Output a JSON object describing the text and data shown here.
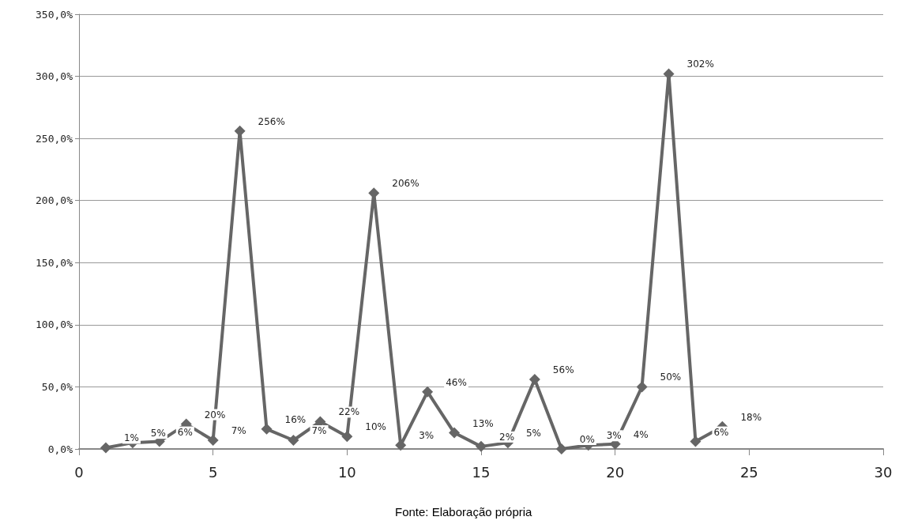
{
  "chart_data": {
    "type": "line",
    "x": [
      1,
      2,
      3,
      4,
      5,
      6,
      7,
      8,
      9,
      10,
      11,
      12,
      13,
      14,
      15,
      16,
      17,
      18,
      19,
      20,
      21,
      22,
      23,
      24
    ],
    "series": [
      {
        "color": "#666666",
        "values": [
          1,
          5,
          6,
          20,
          7,
          256,
          16,
          7,
          22,
          10,
          206,
          3,
          46,
          13,
          2,
          5,
          56,
          0,
          3,
          4,
          50,
          302,
          6,
          18
        ],
        "value_labels": [
          "1%",
          "5%",
          "6%",
          "20%",
          "7%",
          "256%",
          "16%",
          "7%",
          "22%",
          "10%",
          "206%",
          "3%",
          "46%",
          "13%",
          "2%",
          "5%",
          "56%",
          "0%",
          "3%",
          "4%",
          "50%",
          "302%",
          "6%",
          "18%"
        ]
      }
    ],
    "xlim": [
      0,
      30
    ],
    "xticks": [
      0,
      5,
      10,
      15,
      20,
      25,
      30
    ],
    "ylim": [
      0,
      350
    ],
    "yticks": [
      {
        "value": 0,
        "label": "0,0%"
      },
      {
        "value": 50,
        "label": "50,0%"
      },
      {
        "value": 100,
        "label": "100,0%"
      },
      {
        "value": 150,
        "label": "150,0%"
      },
      {
        "value": 200,
        "label": "200,0%"
      },
      {
        "value": 250,
        "label": "250,0%"
      },
      {
        "value": 300,
        "label": "300,0%"
      },
      {
        "value": 350,
        "label": "350,0%"
      }
    ],
    "grid": "y",
    "marker": "diamond",
    "line_style": "solid",
    "annotations": [
      "Fonte: Elaboração própria"
    ]
  }
}
